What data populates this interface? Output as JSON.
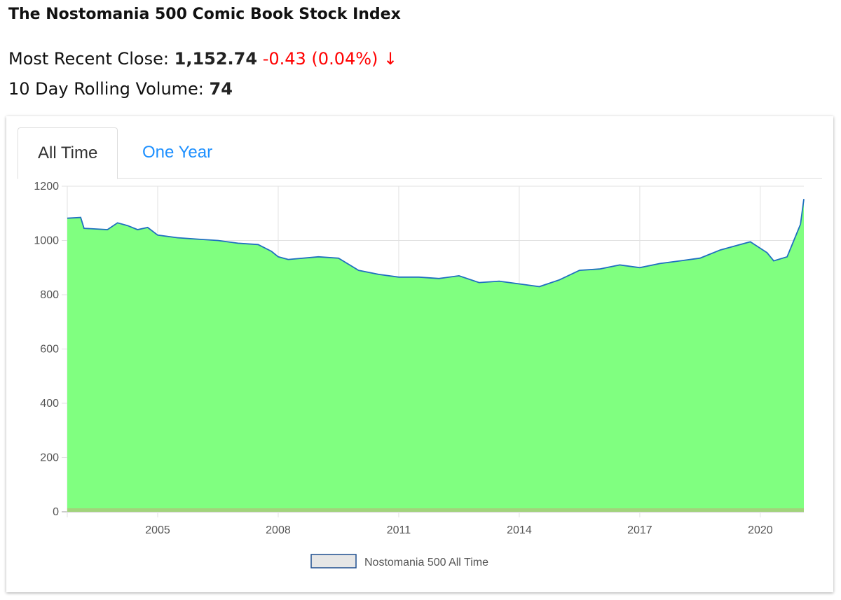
{
  "title": "The Nostomania 500 Comic Book Stock Index",
  "close": {
    "label": "Most Recent Close:",
    "value": "1,152.74",
    "change": "-0.43 (0.04%) ↓",
    "change_color": "#ff0000"
  },
  "volume": {
    "label": "10 Day Rolling Volume:",
    "value": "74"
  },
  "tabs": [
    {
      "label": "All Time",
      "active": true
    },
    {
      "label": "One Year",
      "active": false
    }
  ],
  "chart_data": {
    "type": "area",
    "title": "",
    "xlabel": "",
    "ylabel": "",
    "ylim": [
      0,
      1200
    ],
    "yticks": [
      "0",
      "200",
      "400",
      "600",
      "800",
      "1000",
      "1200"
    ],
    "xticks": [
      "2005",
      "2008",
      "2011",
      "2014",
      "2017",
      "2020"
    ],
    "xlim": [
      "2002-10",
      "2021-02"
    ],
    "grid": true,
    "legend": {
      "placement": "bottom",
      "entries": [
        "Nostomania 500 All Time"
      ]
    },
    "fill_color": "#80ff80",
    "line_color": "#1f6fc0",
    "series": [
      {
        "name": "Nostomania 500 All Time",
        "points": [
          [
            "2002-10",
            1082
          ],
          [
            "2003-02",
            1085
          ],
          [
            "2003-03",
            1045
          ],
          [
            "2003-10",
            1040
          ],
          [
            "2004-01",
            1065
          ],
          [
            "2004-04",
            1055
          ],
          [
            "2004-07",
            1040
          ],
          [
            "2004-10",
            1048
          ],
          [
            "2005-01",
            1020
          ],
          [
            "2005-07",
            1010
          ],
          [
            "2006-01",
            1005
          ],
          [
            "2006-07",
            1000
          ],
          [
            "2007-01",
            990
          ],
          [
            "2007-07",
            985
          ],
          [
            "2007-11",
            960
          ],
          [
            "2008-01",
            940
          ],
          [
            "2008-04",
            930
          ],
          [
            "2009-01",
            940
          ],
          [
            "2009-07",
            935
          ],
          [
            "2010-01",
            890
          ],
          [
            "2010-07",
            875
          ],
          [
            "2011-01",
            865
          ],
          [
            "2011-07",
            865
          ],
          [
            "2012-01",
            860
          ],
          [
            "2012-07",
            870
          ],
          [
            "2013-01",
            845
          ],
          [
            "2013-07",
            850
          ],
          [
            "2014-01",
            840
          ],
          [
            "2014-07",
            830
          ],
          [
            "2015-01",
            855
          ],
          [
            "2015-07",
            890
          ],
          [
            "2016-01",
            895
          ],
          [
            "2016-07",
            910
          ],
          [
            "2017-01",
            900
          ],
          [
            "2017-07",
            915
          ],
          [
            "2018-01",
            925
          ],
          [
            "2018-07",
            935
          ],
          [
            "2019-01",
            965
          ],
          [
            "2019-07",
            985
          ],
          [
            "2019-10",
            995
          ],
          [
            "2020-03",
            955
          ],
          [
            "2020-05",
            925
          ],
          [
            "2020-09",
            940
          ],
          [
            "2020-11",
            1000
          ],
          [
            "2021-01",
            1060
          ],
          [
            "2021-02",
            1152.74
          ]
        ]
      }
    ]
  }
}
